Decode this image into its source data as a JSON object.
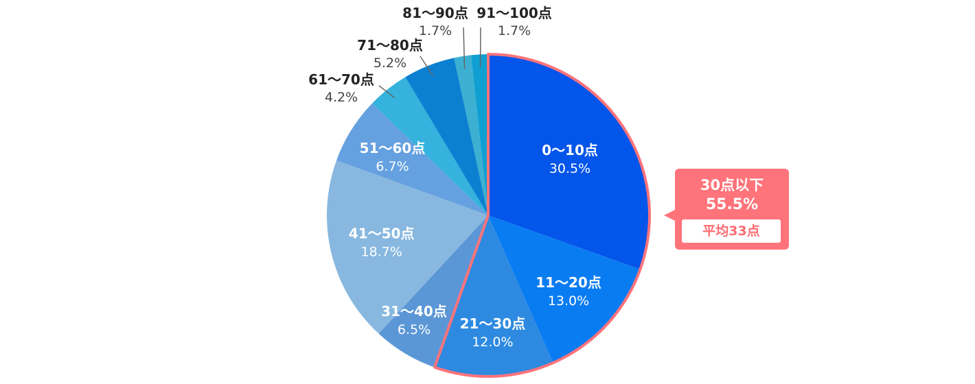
{
  "chart_data": {
    "type": "pie",
    "title": "",
    "slices": [
      {
        "label": "0〜10点",
        "value": 30.5,
        "percent_label": "30.5%",
        "color": "#0455ea"
      },
      {
        "label": "11〜20点",
        "value": 13.0,
        "percent_label": "13.0%",
        "color": "#0a7cf2"
      },
      {
        "label": "21〜30点",
        "value": 12.0,
        "percent_label": "12.0%",
        "color": "#2d8ae0"
      },
      {
        "label": "31〜40点",
        "value": 6.5,
        "percent_label": "6.5%",
        "color": "#5b97d6"
      },
      {
        "label": "41〜50点",
        "value": 18.7,
        "percent_label": "18.7%",
        "color": "#88b8e0"
      },
      {
        "label": "51〜60点",
        "value": 6.7,
        "percent_label": "6.7%",
        "color": "#65a0e0"
      },
      {
        "label": "61〜70点",
        "value": 4.2,
        "percent_label": "4.2%",
        "color": "#35b2dd"
      },
      {
        "label": "71〜80点",
        "value": 5.2,
        "percent_label": "5.2%",
        "color": "#0c80d0"
      },
      {
        "label": "81〜90点",
        "value": 1.7,
        "percent_label": "1.7%",
        "color": "#3db0d2"
      },
      {
        "label": "91〜100点",
        "value": 1.7,
        "percent_label": "1.7%",
        "color": "#109fd2"
      }
    ],
    "highlight": {
      "slice_indices": [
        0,
        1,
        2
      ],
      "outline_color": "#ff737a",
      "title": "30点以下",
      "percent_label": "55.5%",
      "average_label": "平均33点"
    }
  }
}
